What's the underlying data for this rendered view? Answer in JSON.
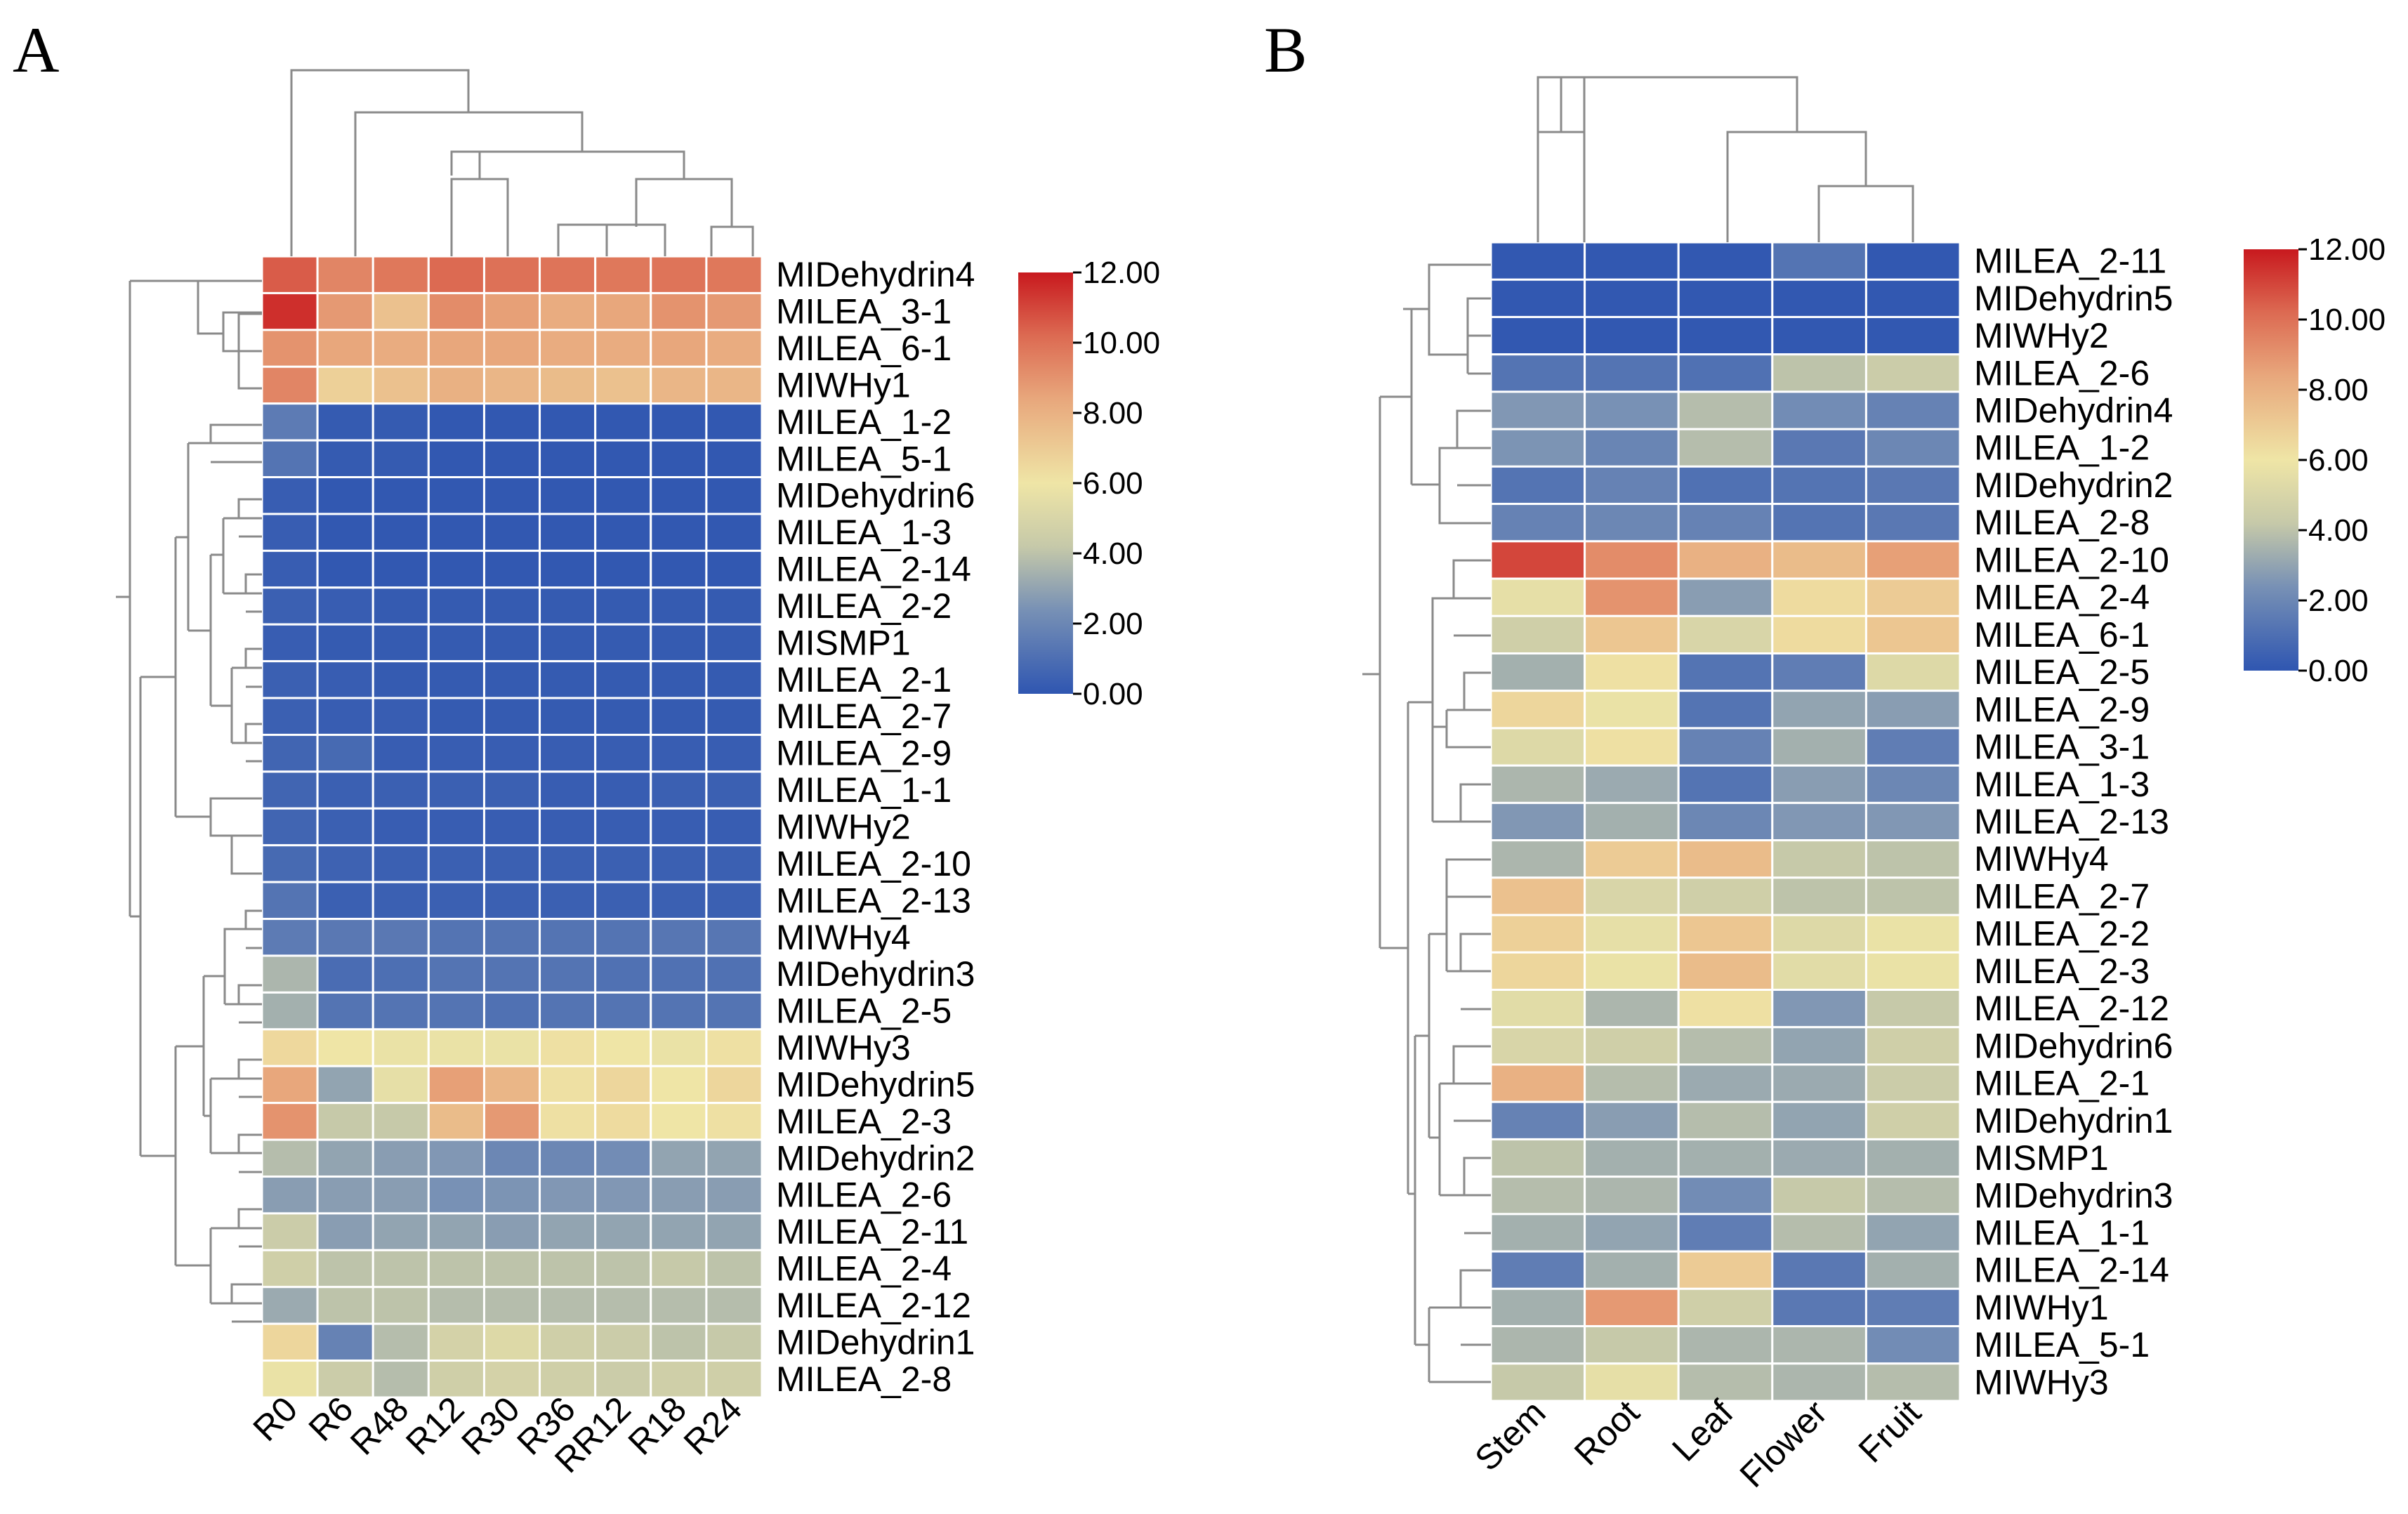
{
  "chart_data": [
    {
      "type": "heatmap",
      "panel_label": "A",
      "columns": [
        "R0",
        "R6",
        "R48",
        "R12",
        "R30",
        "R36",
        "RR12",
        "R18",
        "R24"
      ],
      "rows": [
        "MIDehydrin4",
        "MILEA_3-1",
        "MILEA_6-1",
        "MIWHy1",
        "MILEA_1-2",
        "MILEA_5-1",
        "MIDehydrin6",
        "MILEA_1-3",
        "MILEA_2-14",
        "MILEA_2-2",
        "MISMP1",
        "MILEA_2-1",
        "MILEA_2-7",
        "MILEA_2-9",
        "MILEA_1-1",
        "MIWHy2",
        "MILEA_2-10",
        "MILEA_2-13",
        "MIWHy4",
        "MIDehydrin3",
        "MILEA_2-5",
        "MIWHy3",
        "MIDehydrin5",
        "MILEA_2-3",
        "MIDehydrin2",
        "MILEA_2-6",
        "MILEA_2-11",
        "MILEA_2-4",
        "MILEA_2-12",
        "MIDehydrin1",
        "MILEA_2-8"
      ],
      "values": [
        [
          10.5,
          9.4,
          9.8,
          10.2,
          10.0,
          9.9,
          9.8,
          9.9,
          9.8
        ],
        [
          11.5,
          8.8,
          7.4,
          9.2,
          8.6,
          8.2,
          8.4,
          9.0,
          8.8
        ],
        [
          9.0,
          8.4,
          8.2,
          8.4,
          8.4,
          8.2,
          8.2,
          8.4,
          8.2
        ],
        [
          9.4,
          6.8,
          7.4,
          8.0,
          7.8,
          7.6,
          7.4,
          7.8,
          7.8
        ],
        [
          1.5,
          0.2,
          0.2,
          0.1,
          0.1,
          0.1,
          0.1,
          0.1,
          0.1
        ],
        [
          1.2,
          0.2,
          0.2,
          0.1,
          0.1,
          0.1,
          0.1,
          0.1,
          0.1
        ],
        [
          0.3,
          0.1,
          0.1,
          0.1,
          0.1,
          0.1,
          0.1,
          0.1,
          0.1
        ],
        [
          0.3,
          0.1,
          0.1,
          0.1,
          0.1,
          0.1,
          0.1,
          0.1,
          0.1
        ],
        [
          0.3,
          0.1,
          0.1,
          0.1,
          0.1,
          0.1,
          0.1,
          0.1,
          0.1
        ],
        [
          0.4,
          0.3,
          0.2,
          0.2,
          0.2,
          0.2,
          0.2,
          0.2,
          0.2
        ],
        [
          0.3,
          0.2,
          0.2,
          0.2,
          0.2,
          0.2,
          0.2,
          0.2,
          0.2
        ],
        [
          0.4,
          0.3,
          0.2,
          0.2,
          0.2,
          0.2,
          0.2,
          0.2,
          0.2
        ],
        [
          0.4,
          0.3,
          0.3,
          0.2,
          0.2,
          0.2,
          0.2,
          0.2,
          0.2
        ],
        [
          0.6,
          0.8,
          0.3,
          0.3,
          0.3,
          0.3,
          0.3,
          0.3,
          0.3
        ],
        [
          0.6,
          0.4,
          0.4,
          0.4,
          0.4,
          0.3,
          0.3,
          0.4,
          0.4
        ],
        [
          0.6,
          0.4,
          0.3,
          0.3,
          0.3,
          0.3,
          0.3,
          0.3,
          0.3
        ],
        [
          0.8,
          0.5,
          0.4,
          0.4,
          0.4,
          0.4,
          0.4,
          0.4,
          0.4
        ],
        [
          1.2,
          0.4,
          0.4,
          0.4,
          0.4,
          0.4,
          0.4,
          0.4,
          0.4
        ],
        [
          1.5,
          1.4,
          1.4,
          1.2,
          1.2,
          1.2,
          1.2,
          1.3,
          1.3
        ],
        [
          3.6,
          0.9,
          1.0,
          1.2,
          1.2,
          1.2,
          1.1,
          1.1,
          1.1
        ],
        [
          3.4,
          1.2,
          1.2,
          1.2,
          1.1,
          1.2,
          1.2,
          1.2,
          1.2
        ],
        [
          6.5,
          6.0,
          5.8,
          5.8,
          5.8,
          6.2,
          6.0,
          5.8,
          6.2
        ],
        [
          8.4,
          3.0,
          5.6,
          8.6,
          7.8,
          6.2,
          6.6,
          6.0,
          6.6
        ],
        [
          9.0,
          4.2,
          4.2,
          7.6,
          8.8,
          6.2,
          6.4,
          6.0,
          6.2
        ],
        [
          3.8,
          3.0,
          2.8,
          2.6,
          2.0,
          2.0,
          2.2,
          3.0,
          3.0
        ],
        [
          2.8,
          2.8,
          2.8,
          2.4,
          2.5,
          2.6,
          2.6,
          2.8,
          2.8
        ],
        [
          4.4,
          2.8,
          3.0,
          3.0,
          2.8,
          3.0,
          3.0,
          3.0,
          3.0
        ],
        [
          4.6,
          4.0,
          4.0,
          4.0,
          4.0,
          4.0,
          4.0,
          4.2,
          4.0
        ],
        [
          3.2,
          4.0,
          4.0,
          3.8,
          3.8,
          3.8,
          3.8,
          3.8,
          3.8
        ],
        [
          6.6,
          1.8,
          3.8,
          4.8,
          5.2,
          4.6,
          4.4,
          4.0,
          4.2
        ],
        [
          5.8,
          4.4,
          3.8,
          4.6,
          4.8,
          4.6,
          4.4,
          4.6,
          4.6
        ]
      ],
      "colorbar": {
        "min": 0,
        "max": 12,
        "ticks": [
          "12.00",
          "10.00",
          "8.00",
          "6.00",
          "4.00",
          "2.00",
          "0.00"
        ]
      }
    },
    {
      "type": "heatmap",
      "panel_label": "B",
      "columns": [
        "Stem",
        "Root",
        "Leaf",
        "Flower",
        "Fruit"
      ],
      "rows": [
        "MILEA_2-11",
        "MIDehydrin5",
        "MIWHy2",
        "MILEA_2-6",
        "MIDehydrin4",
        "MILEA_1-2",
        "MIDehydrin2",
        "MILEA_2-8",
        "MILEA_2-10",
        "MILEA_2-4",
        "MILEA_6-1",
        "MILEA_2-5",
        "MILEA_2-9",
        "MILEA_3-1",
        "MILEA_1-3",
        "MILEA_2-13",
        "MIWHy4",
        "MILEA_2-7",
        "MILEA_2-2",
        "MILEA_2-3",
        "MILEA_2-12",
        "MIDehydrin6",
        "MILEA_2-1",
        "MIDehydrin1",
        "MISMP1",
        "MIDehydrin3",
        "MILEA_1-1",
        "MILEA_2-14",
        "MIWHy1",
        "MILEA_5-1",
        "MIWHy3"
      ],
      "values": [
        [
          0.1,
          0.1,
          0.1,
          1.2,
          0.1
        ],
        [
          0.1,
          0.1,
          0.1,
          0.1,
          0.1
        ],
        [
          0.1,
          0.1,
          0.1,
          0.1,
          0.1
        ],
        [
          1.2,
          1.2,
          1.1,
          4.0,
          4.4
        ],
        [
          2.6,
          2.4,
          3.8,
          2.2,
          1.8
        ],
        [
          2.5,
          1.9,
          3.8,
          1.4,
          2.0
        ],
        [
          1.2,
          1.8,
          1.1,
          1.2,
          1.4
        ],
        [
          1.8,
          2.0,
          1.8,
          1.2,
          1.4
        ],
        [
          11.0,
          9.2,
          8.0,
          7.6,
          8.6
        ],
        [
          5.6,
          9.0,
          2.8,
          6.4,
          7.0
        ],
        [
          4.6,
          7.2,
          5.0,
          6.4,
          7.2
        ],
        [
          3.4,
          6.2,
          1.2,
          1.6,
          5.2
        ],
        [
          6.6,
          5.8,
          1.2,
          3.0,
          2.8
        ],
        [
          5.2,
          6.2,
          1.8,
          3.4,
          1.6
        ],
        [
          3.6,
          3.2,
          1.2,
          2.8,
          2.0
        ],
        [
          2.6,
          3.4,
          2.0,
          2.6,
          2.6
        ],
        [
          3.6,
          7.0,
          7.6,
          4.2,
          4.0
        ],
        [
          7.4,
          5.0,
          4.6,
          4.0,
          4.0
        ],
        [
          6.8,
          5.6,
          7.2,
          5.2,
          5.8
        ],
        [
          6.6,
          5.8,
          7.6,
          5.4,
          5.8
        ],
        [
          5.4,
          3.6,
          6.2,
          2.6,
          4.2
        ],
        [
          5.0,
          4.6,
          3.8,
          3.0,
          4.6
        ],
        [
          8.0,
          3.8,
          3.2,
          3.2,
          4.4
        ],
        [
          1.8,
          2.8,
          3.8,
          3.0,
          4.6
        ],
        [
          4.0,
          3.4,
          3.4,
          3.2,
          3.4
        ],
        [
          3.8,
          3.6,
          2.2,
          4.2,
          3.8
        ],
        [
          3.4,
          3.0,
          1.6,
          3.8,
          3.0
        ],
        [
          1.6,
          3.4,
          7.0,
          1.4,
          3.4
        ],
        [
          3.4,
          8.8,
          4.6,
          1.4,
          1.6
        ],
        [
          3.6,
          4.2,
          3.6,
          3.6,
          2.2
        ],
        [
          4.2,
          5.6,
          3.8,
          3.6,
          3.8
        ]
      ],
      "colorbar": {
        "min": 0,
        "max": 12,
        "ticks": [
          "12.00",
          "10.00",
          "8.00",
          "6.00",
          "4.00",
          "2.00",
          "0.00"
        ]
      }
    }
  ]
}
